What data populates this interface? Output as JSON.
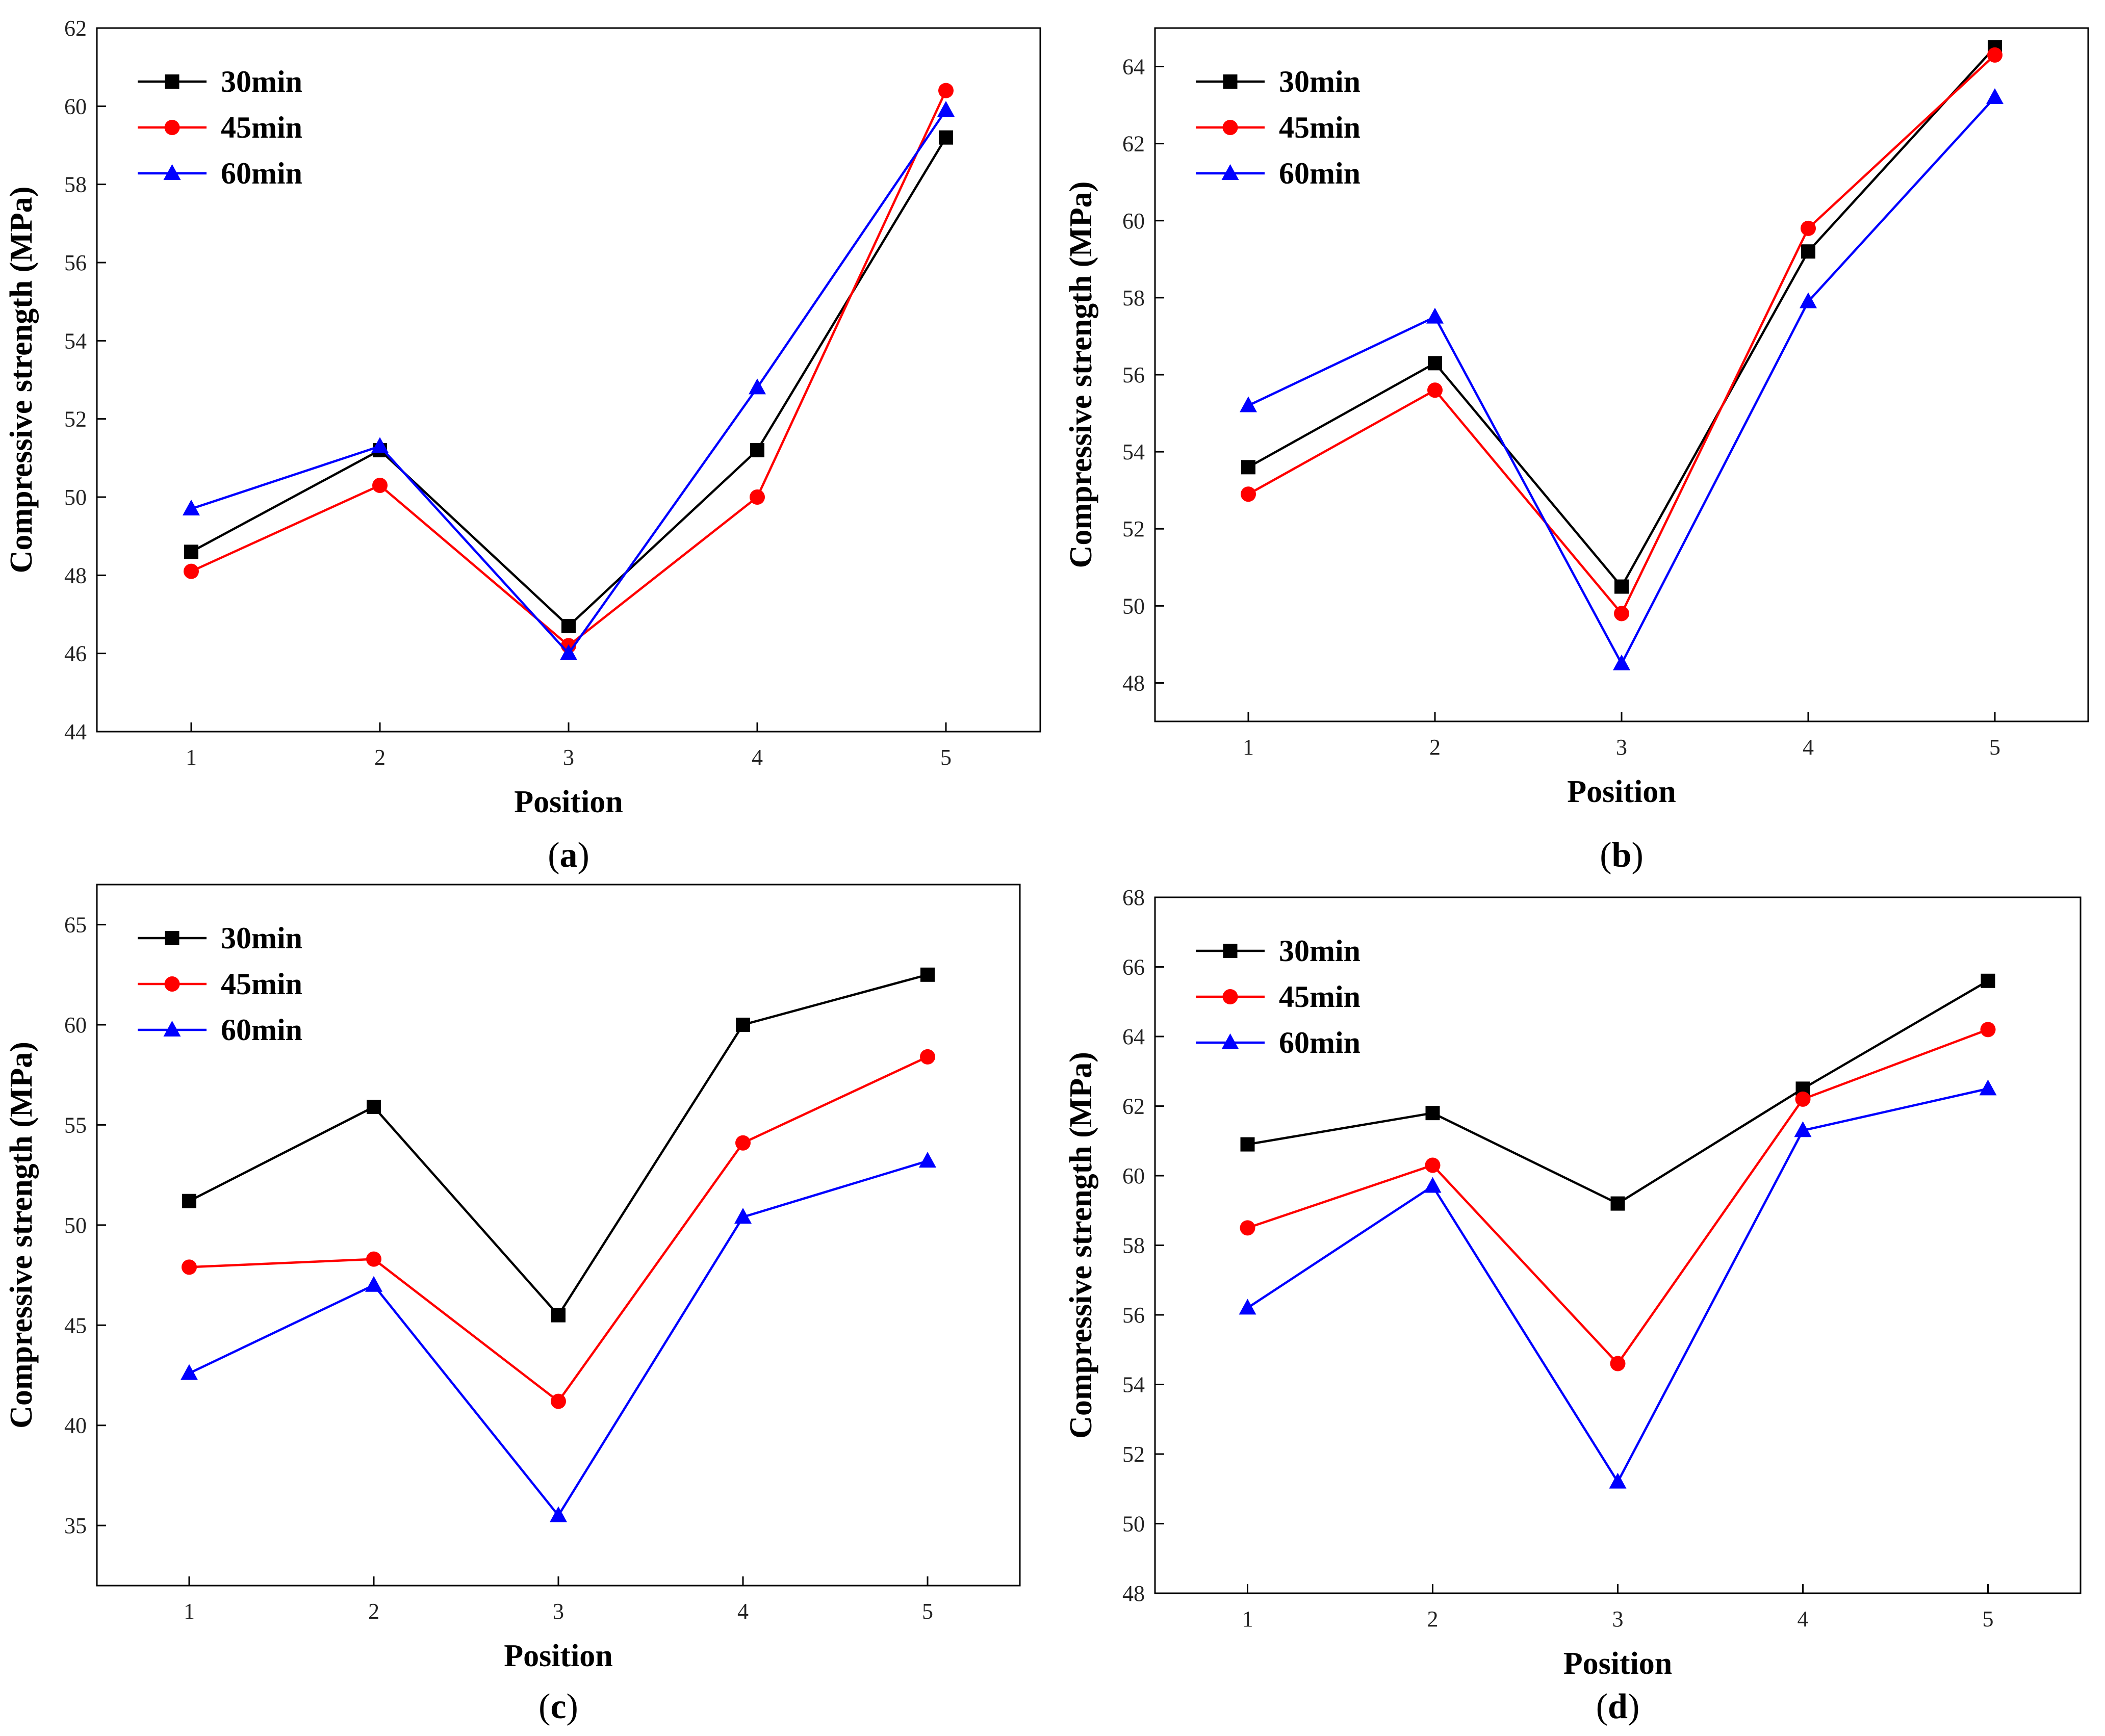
{
  "series_colors": {
    "30min": "#000000",
    "45min": "#ff0000",
    "60min": "#0000ff"
  },
  "chart_data": [
    {
      "panel": "a",
      "type": "line",
      "caption": "a",
      "xlabel": "Position",
      "ylabel": "Compressive strength (MPa)",
      "x": [
        1,
        2,
        3,
        4,
        5
      ],
      "xticks": [
        "1",
        "2",
        "3",
        "4",
        "5"
      ],
      "ylim": [
        44,
        62
      ],
      "yticks": [
        "44",
        "46",
        "48",
        "50",
        "52",
        "54",
        "56",
        "58",
        "60",
        "62"
      ],
      "legend_position": "top-left",
      "series": [
        {
          "name": "30min",
          "marker": "square",
          "values": [
            48.6,
            51.2,
            46.7,
            51.2,
            59.2
          ]
        },
        {
          "name": "45min",
          "marker": "circle",
          "values": [
            48.1,
            50.3,
            46.2,
            50.0,
            60.4
          ]
        },
        {
          "name": "60min",
          "marker": "triangle",
          "values": [
            49.7,
            51.3,
            46.0,
            52.8,
            59.9
          ]
        }
      ]
    },
    {
      "panel": "b",
      "type": "line",
      "caption": "b",
      "xlabel": "Position",
      "ylabel": "Compressive strength (MPa)",
      "x": [
        1,
        2,
        3,
        4,
        5
      ],
      "xticks": [
        "1",
        "2",
        "3",
        "4",
        "5"
      ],
      "ylim": [
        47,
        65
      ],
      "yticks": [
        "48",
        "50",
        "52",
        "54",
        "56",
        "58",
        "60",
        "62",
        "64"
      ],
      "legend_position": "top-left",
      "series": [
        {
          "name": "30min",
          "marker": "square",
          "values": [
            53.6,
            56.3,
            50.5,
            59.2,
            64.5
          ]
        },
        {
          "name": "45min",
          "marker": "circle",
          "values": [
            52.9,
            55.6,
            49.8,
            59.8,
            64.3
          ]
        },
        {
          "name": "60min",
          "marker": "triangle",
          "values": [
            55.2,
            57.5,
            48.5,
            57.9,
            63.2
          ]
        }
      ]
    },
    {
      "panel": "c",
      "type": "line",
      "caption": "c",
      "xlabel": "Position",
      "ylabel": "Compressive strength (MPa)",
      "x": [
        1,
        2,
        3,
        4,
        5
      ],
      "xticks": [
        "1",
        "2",
        "3",
        "4",
        "5"
      ],
      "ylim": [
        32,
        67
      ],
      "yticks": [
        "35",
        "40",
        "45",
        "50",
        "55",
        "60",
        "65"
      ],
      "legend_position": "top-left",
      "series": [
        {
          "name": "30min",
          "marker": "square",
          "values": [
            51.2,
            55.9,
            45.5,
            60.0,
            62.5
          ]
        },
        {
          "name": "45min",
          "marker": "circle",
          "values": [
            47.9,
            48.3,
            41.2,
            54.1,
            58.4
          ]
        },
        {
          "name": "60min",
          "marker": "triangle",
          "values": [
            42.6,
            47.0,
            35.5,
            50.4,
            53.2
          ]
        }
      ]
    },
    {
      "panel": "d",
      "type": "line",
      "caption": "d",
      "xlabel": "Position",
      "ylabel": "Compressive strength (MPa)",
      "x": [
        1,
        2,
        3,
        4,
        5
      ],
      "xticks": [
        "1",
        "2",
        "3",
        "4",
        "5"
      ],
      "ylim": [
        48,
        68
      ],
      "yticks": [
        "48",
        "50",
        "52",
        "54",
        "56",
        "58",
        "60",
        "62",
        "64",
        "66",
        "68"
      ],
      "legend_position": "top-left",
      "series": [
        {
          "name": "30min",
          "marker": "square",
          "values": [
            60.9,
            61.8,
            59.2,
            62.5,
            65.6
          ]
        },
        {
          "name": "45min",
          "marker": "circle",
          "values": [
            58.5,
            60.3,
            54.6,
            62.2,
            64.2
          ]
        },
        {
          "name": "60min",
          "marker": "triangle",
          "values": [
            56.2,
            59.7,
            51.2,
            61.3,
            62.5
          ]
        }
      ]
    }
  ]
}
